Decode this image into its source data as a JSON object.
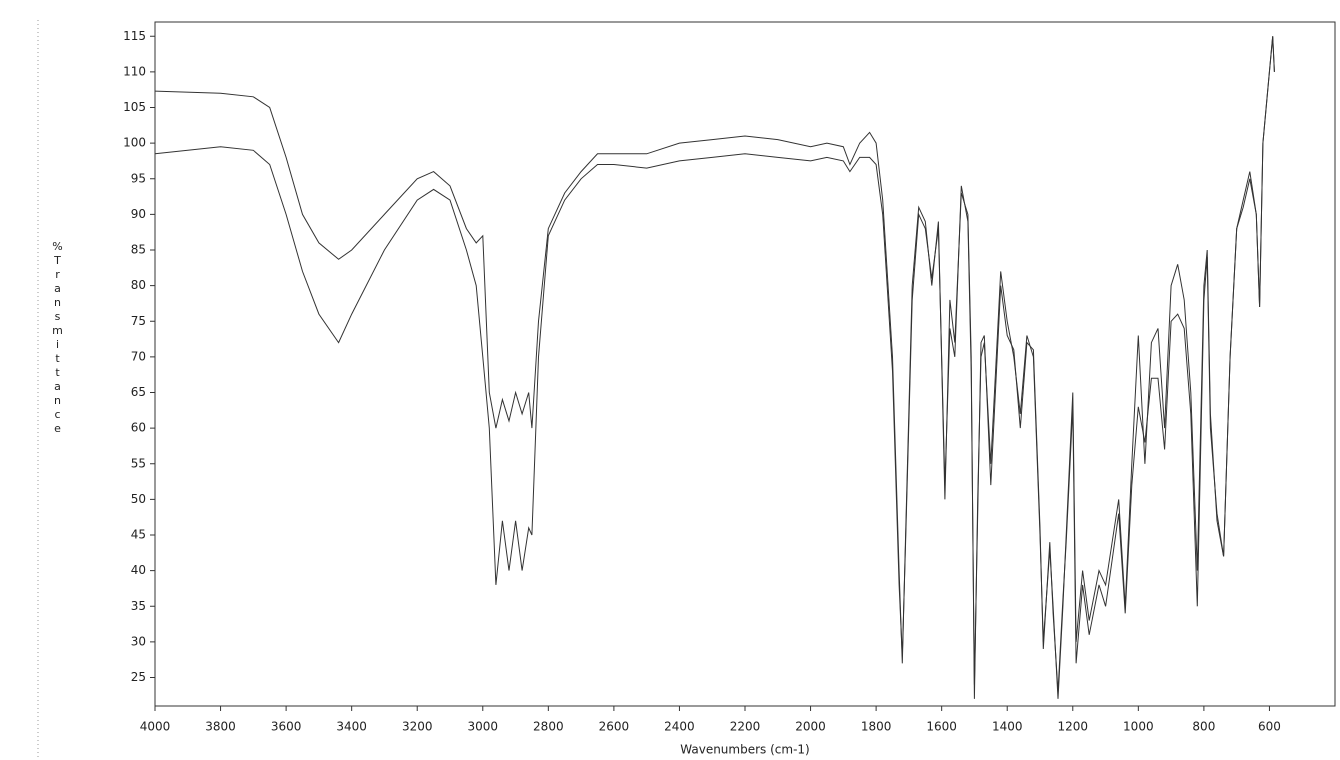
{
  "chart_data": {
    "type": "line",
    "x_label": "Wavenumbers (cm-1)",
    "y_label": "%Transmittance",
    "x": [
      4000,
      3800,
      3700,
      3650,
      3600,
      3550,
      3500,
      3440,
      3400,
      3300,
      3200,
      3150,
      3100,
      3050,
      3020,
      3000,
      2980,
      2960,
      2940,
      2920,
      2900,
      2880,
      2860,
      2850,
      2830,
      2800,
      2750,
      2700,
      2650,
      2600,
      2500,
      2400,
      2300,
      2200,
      2100,
      2000,
      1950,
      1900,
      1880,
      1850,
      1820,
      1800,
      1780,
      1750,
      1730,
      1720,
      1710,
      1690,
      1670,
      1650,
      1630,
      1610,
      1590,
      1575,
      1560,
      1540,
      1520,
      1510,
      1500,
      1490,
      1480,
      1470,
      1450,
      1420,
      1400,
      1380,
      1360,
      1340,
      1320,
      1300,
      1290,
      1270,
      1260,
      1245,
      1230,
      1220,
      1200,
      1190,
      1170,
      1150,
      1120,
      1100,
      1060,
      1040,
      1020,
      1000,
      980,
      960,
      940,
      920,
      900,
      880,
      860,
      840,
      820,
      800,
      790,
      780,
      760,
      740,
      720,
      700,
      680,
      660,
      640,
      630,
      620,
      600,
      590,
      585
    ],
    "series": [
      {
        "color": "#333333",
        "values": [
          107.3,
          107,
          106.5,
          105,
          98,
          90,
          86,
          83.7,
          85,
          90,
          95,
          96,
          94,
          88,
          86,
          87,
          65,
          60,
          64,
          61,
          65,
          62,
          65,
          60,
          75,
          88,
          93,
          96,
          98.5,
          98.5,
          98.5,
          100,
          100.5,
          101,
          100.5,
          99.5,
          100,
          99.5,
          97,
          100,
          101.5,
          100,
          92,
          70,
          40,
          27,
          45,
          80,
          91,
          89,
          80,
          89,
          50,
          78,
          72,
          93,
          90,
          70,
          22,
          50,
          70,
          72,
          55,
          82,
          75,
          70,
          62,
          73,
          70,
          45,
          30,
          43,
          35,
          22,
          35,
          45,
          65,
          30,
          40,
          33,
          40,
          38,
          50,
          35,
          55,
          73,
          55,
          72,
          74,
          60,
          80,
          83,
          78,
          65,
          40,
          80,
          85,
          62,
          47,
          42,
          70,
          88,
          92,
          96,
          90,
          77,
          100,
          110,
          115,
          110
        ]
      },
      {
        "color": "#333333",
        "values": [
          98.5,
          99.5,
          99,
          97,
          90,
          82,
          76,
          72,
          76,
          85,
          92,
          93.5,
          92,
          85,
          80,
          70,
          60,
          38,
          47,
          40,
          47,
          40,
          46,
          45,
          70,
          87,
          92,
          95,
          97,
          97,
          96.5,
          97.5,
          98,
          98.5,
          98,
          97.5,
          98,
          97.5,
          96,
          98,
          98,
          97,
          90,
          68,
          38,
          28,
          44,
          78,
          90,
          88,
          81,
          88,
          52,
          74,
          70,
          94,
          89,
          68,
          24,
          48,
          72,
          73,
          52,
          80,
          73,
          71,
          60,
          72,
          71,
          46,
          29,
          44,
          34,
          23,
          36,
          44,
          63,
          27,
          38,
          31,
          38,
          35,
          48,
          34,
          52,
          63,
          58,
          67,
          67,
          57,
          75,
          76,
          74,
          62,
          35,
          78,
          84,
          60,
          48,
          42,
          70,
          88,
          91,
          95,
          90,
          77,
          100,
          110,
          115,
          110
        ]
      }
    ],
    "xlim": [
      4000,
      400
    ],
    "ylim": [
      21,
      117
    ],
    "xticks": [
      4000,
      3800,
      3600,
      3400,
      3200,
      3000,
      2800,
      2600,
      2400,
      2200,
      2000,
      1800,
      1600,
      1400,
      1200,
      1000,
      800,
      600
    ],
    "yticks": [
      25,
      30,
      35,
      40,
      45,
      50,
      55,
      60,
      65,
      70,
      75,
      80,
      85,
      90,
      95,
      100,
      105,
      110,
      115
    ]
  }
}
